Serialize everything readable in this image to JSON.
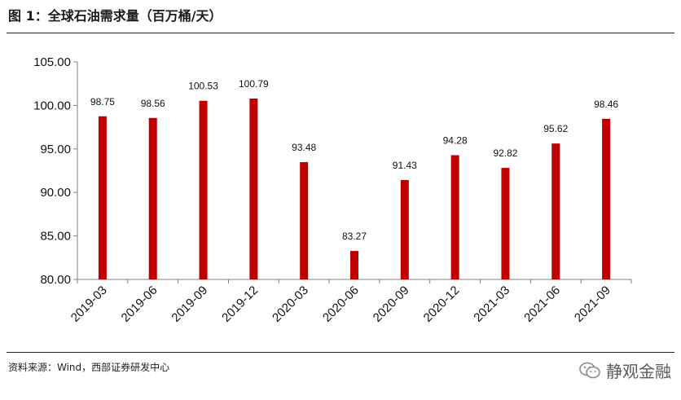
{
  "figure": {
    "title": "图 1：全球石油需求量（百万桶/天）",
    "source": "资料来源：Wind，西部证券研发中心",
    "watermark": "静观金融"
  },
  "chart_data": {
    "type": "bar",
    "categories": [
      "2019-03",
      "2019-06",
      "2019-09",
      "2019-12",
      "2020-03",
      "2020-06",
      "2020-09",
      "2020-12",
      "2021-03",
      "2021-06",
      "2021-09"
    ],
    "values": [
      98.75,
      98.56,
      100.53,
      100.79,
      93.48,
      83.27,
      91.43,
      94.28,
      92.82,
      95.62,
      98.46
    ],
    "value_labels": [
      "98.75",
      "98.56",
      "100.53",
      "100.79",
      "93.48",
      "83.27",
      "91.43",
      "94.28",
      "92.82",
      "95.62",
      "98.46"
    ],
    "yticks": [
      "80.00",
      "85.00",
      "90.00",
      "95.00",
      "100.00",
      "105.00"
    ],
    "ylim": [
      80,
      105
    ],
    "grid": false,
    "bar_color": "#c00000",
    "axis_color": "#808080"
  }
}
